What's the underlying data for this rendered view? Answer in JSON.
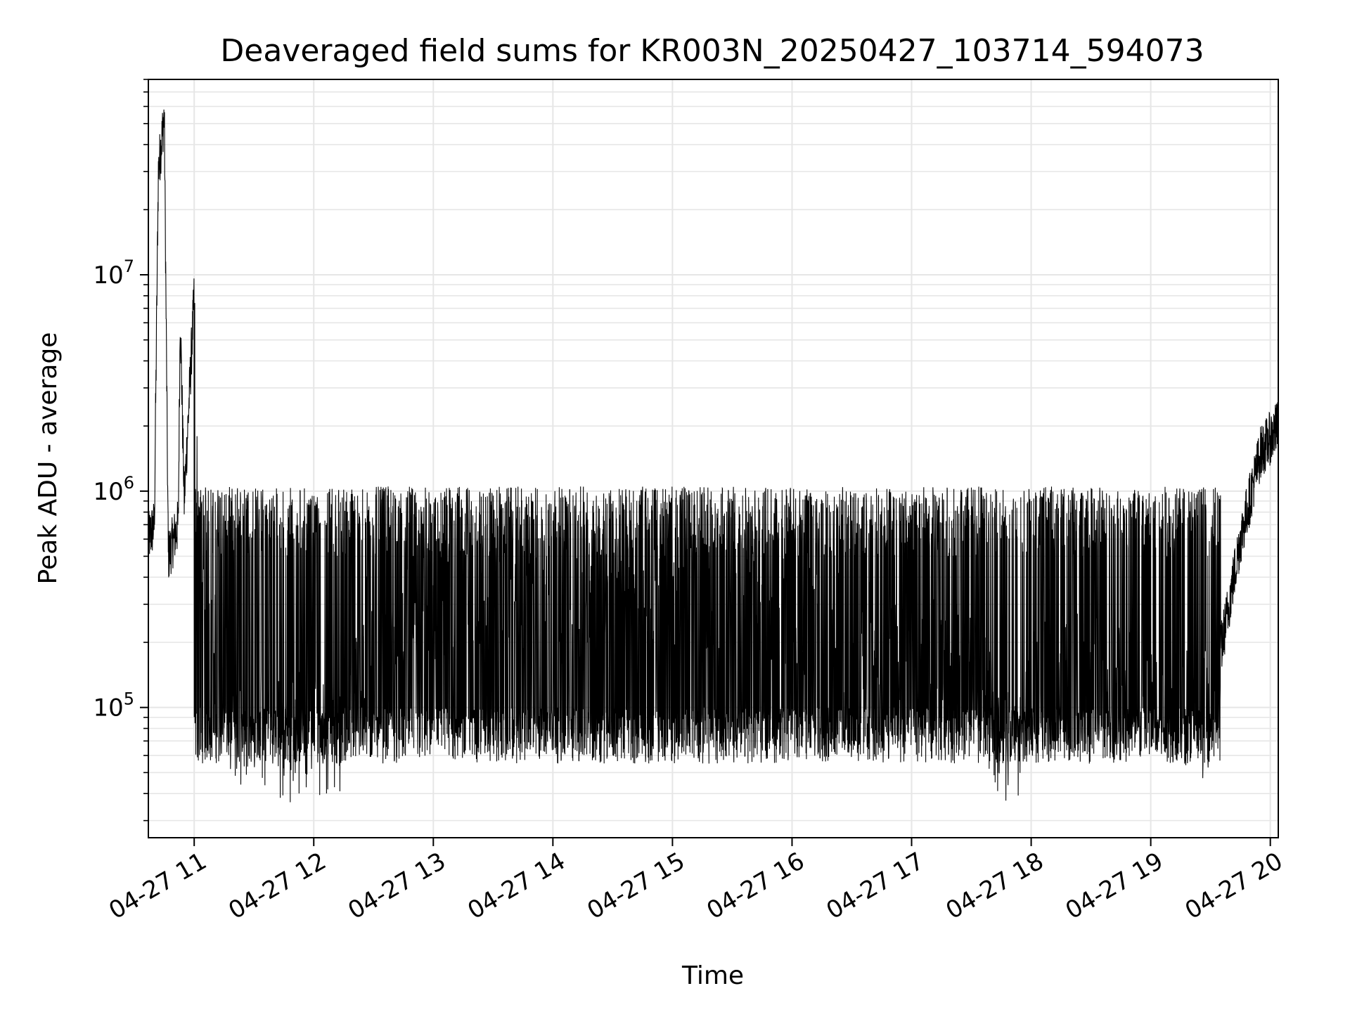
{
  "chart_data": {
    "type": "line",
    "title": "Deaveraged field sums for KR003N_20250427_103714_594073",
    "xlabel": "Time",
    "ylabel": "Peak ADU - average",
    "xlim": [
      "2025-04-27 10:37",
      "2025-04-27 20:04"
    ],
    "ylim": [
      25000,
      80000000
    ],
    "y_scale": "log",
    "grid": "both-major-minor",
    "x_ticks": [
      {
        "value": "2025-04-27 11:00",
        "label": "04-27 11"
      },
      {
        "value": "2025-04-27 12:00",
        "label": "04-27 12"
      },
      {
        "value": "2025-04-27 13:00",
        "label": "04-27 13"
      },
      {
        "value": "2025-04-27 14:00",
        "label": "04-27 14"
      },
      {
        "value": "2025-04-27 15:00",
        "label": "04-27 15"
      },
      {
        "value": "2025-04-27 16:00",
        "label": "04-27 16"
      },
      {
        "value": "2025-04-27 17:00",
        "label": "04-27 17"
      },
      {
        "value": "2025-04-27 18:00",
        "label": "04-27 18"
      },
      {
        "value": "2025-04-27 19:00",
        "label": "04-27 19"
      },
      {
        "value": "2025-04-27 20:00",
        "label": "04-27 20"
      }
    ],
    "y_ticks": [
      {
        "value": 100000,
        "base": "10",
        "exp": "5"
      },
      {
        "value": 1000000,
        "base": "10",
        "exp": "6"
      },
      {
        "value": 10000000,
        "base": "10",
        "exp": "7"
      }
    ],
    "series": [
      {
        "color": "#000000",
        "points": [
          [
            "2025-04-27 10:37",
            600000
          ],
          [
            "2025-04-27 10:40",
            700000
          ],
          [
            "2025-04-27 10:42",
            30000000
          ],
          [
            "2025-04-27 10:45",
            55000000
          ],
          [
            "2025-04-27 10:47",
            500000
          ],
          [
            "2025-04-27 10:52",
            700000
          ],
          [
            "2025-04-27 10:53",
            6500000
          ],
          [
            "2025-04-27 10:55",
            900000
          ],
          [
            "2025-04-27 11:00",
            8000000
          ],
          [
            "2025-04-27 11:02",
            500000
          ],
          [
            "2025-04-27 11:10",
            180000
          ],
          [
            "2025-04-27 11:20",
            90000
          ],
          [
            "2025-04-27 11:30",
            80000
          ],
          [
            "2025-04-27 11:45",
            70000
          ],
          [
            "2025-04-27 12:00",
            80000
          ],
          [
            "2025-04-27 12:15",
            70000
          ],
          [
            "2025-04-27 12:30",
            300000
          ],
          [
            "2025-04-27 13:00",
            300000
          ],
          [
            "2025-04-27 13:30",
            300000
          ],
          [
            "2025-04-27 14:00",
            300000
          ],
          [
            "2025-04-27 14:30",
            350000
          ],
          [
            "2025-04-27 15:00",
            350000
          ],
          [
            "2025-04-27 15:30",
            350000
          ],
          [
            "2025-04-27 16:00",
            300000
          ],
          [
            "2025-04-27 16:30",
            200000
          ],
          [
            "2025-04-27 17:00",
            180000
          ],
          [
            "2025-04-27 17:30",
            150000
          ],
          [
            "2025-04-27 17:50",
            60000
          ],
          [
            "2025-04-27 18:00",
            120000
          ],
          [
            "2025-04-27 18:30",
            150000
          ],
          [
            "2025-04-27 19:00",
            120000
          ],
          [
            "2025-04-27 19:30",
            90000
          ],
          [
            "2025-04-27 19:35",
            180000
          ],
          [
            "2025-04-27 19:45",
            600000
          ],
          [
            "2025-04-27 19:55",
            1500000
          ],
          [
            "2025-04-27 20:04",
            2000000
          ]
        ]
      }
    ]
  }
}
